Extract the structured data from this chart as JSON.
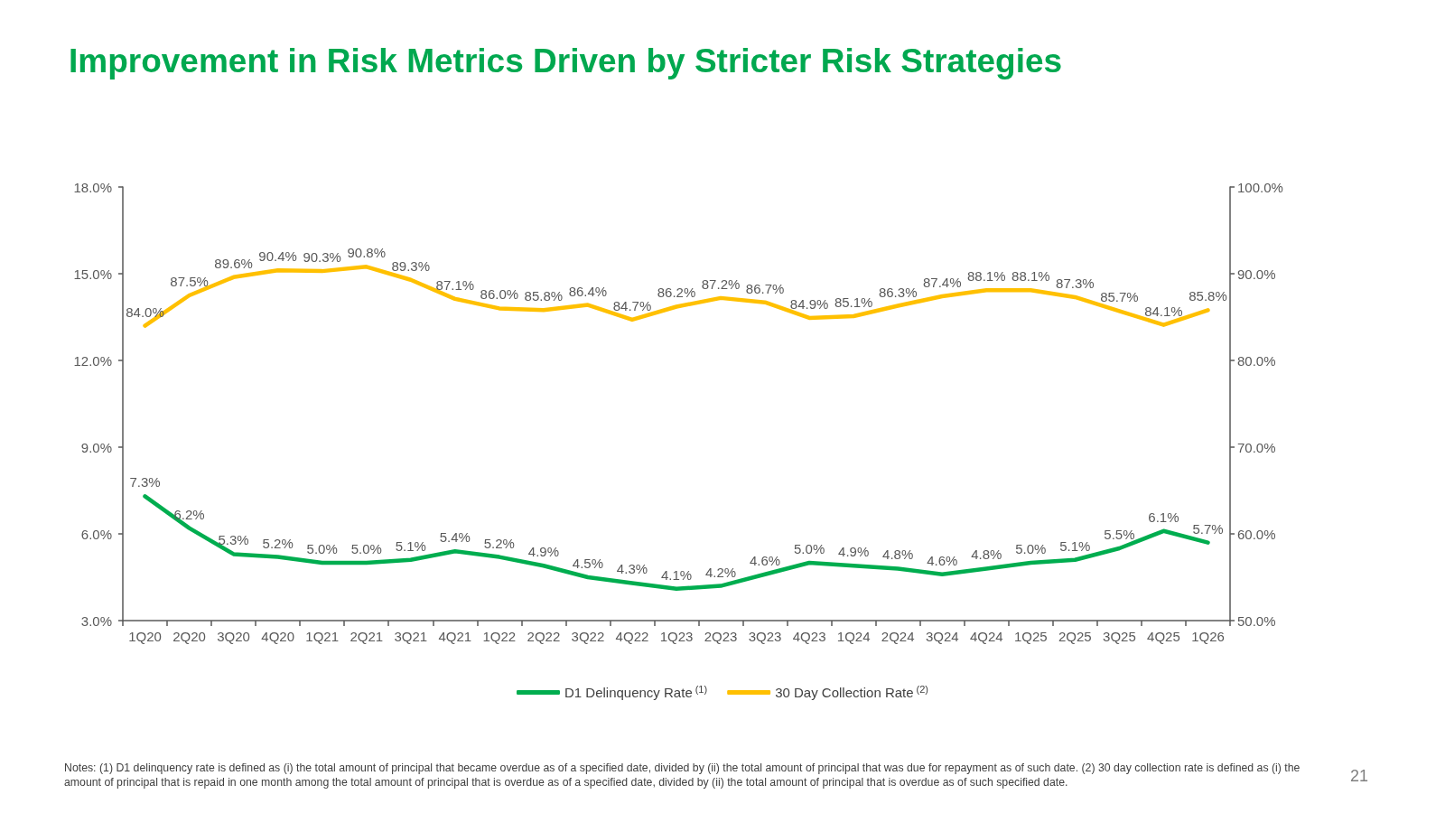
{
  "chart_data": {
    "type": "line",
    "title": "Improvement in Risk Metrics Driven by Stricter Risk Strategies",
    "categories": [
      "1Q20",
      "2Q20",
      "3Q20",
      "4Q20",
      "1Q21",
      "2Q21",
      "3Q21",
      "4Q21",
      "1Q22",
      "2Q22",
      "3Q22",
      "4Q22",
      "1Q23",
      "2Q23",
      "3Q23",
      "4Q23",
      "1Q24",
      "2Q24",
      "3Q24",
      "4Q24",
      "1Q25",
      "2Q25",
      "3Q25",
      "4Q25",
      "1Q26"
    ],
    "series": [
      {
        "name": "D1 Delinquency Rate$^{(1)}$",
        "color": "#00ad4f",
        "values": [
          7.3,
          6.2,
          5.3,
          5.2,
          5.0,
          5.0,
          5.1,
          5.4,
          5.2,
          4.9,
          4.5,
          4.3,
          4.1,
          4.2,
          4.6,
          5.0,
          4.9,
          4.8,
          4.6,
          4.8,
          5.0,
          5.1,
          5.5,
          6.1,
          5.7
        ],
        "value_labels": [
          "7.3%",
          "6.2%",
          "5.3%",
          "5.2%",
          "5.0%",
          "5.0%",
          "5.1%",
          "5.4%",
          "5.2%",
          "4.9%",
          "4.5%",
          "4.3%",
          "4.1%",
          "4.2%",
          "4.6%",
          "5.0%",
          "4.9%",
          "4.8%",
          "4.6%",
          "4.8%",
          "5.0%",
          "5.1%",
          "5.5%",
          "6.1%",
          "5.7%"
        ]
      },
      {
        "name": "30 Day Collection Rate$^{(2)}$",
        "color": "#ffc000",
        "axis": "y2",
        "values": [
          84.0,
          87.5,
          89.6,
          90.4,
          90.3,
          90.8,
          89.3,
          87.1,
          86.0,
          85.8,
          86.4,
          84.7,
          86.2,
          87.2,
          86.7,
          84.9,
          85.1,
          86.3,
          87.4,
          88.1,
          88.1,
          87.3,
          85.7,
          84.1,
          85.8
        ],
        "value_labels": [
          "84.0%",
          "87.5%",
          "89.6%",
          "90.4%",
          "90.3%",
          "90.8%",
          "89.3%",
          "87.1%",
          "86.0%",
          "85.8%",
          "86.4%",
          "84.7%",
          "86.2%",
          "87.2%",
          "86.7%",
          "84.9%",
          "85.1%",
          "86.3%",
          "87.4%",
          "88.1%",
          "88.1%",
          "87.3%",
          "85.7%",
          "84.1%",
          "85.8%"
        ]
      }
    ],
    "ylim": [
      3,
      18
    ],
    "yticks": [
      {
        "value": 3,
        "label": "3.0%"
      },
      {
        "value": 6,
        "label": "6.0%"
      },
      {
        "value": 9,
        "label": "9.0%"
      },
      {
        "value": 12,
        "label": "12.0%"
      },
      {
        "value": 15,
        "label": "15.0%"
      },
      {
        "value": 18,
        "label": "18.0%"
      }
    ],
    "y2lim": [
      50,
      100
    ],
    "y2ticks": [
      {
        "value": 50,
        "label": "50.0%"
      },
      {
        "value": 60,
        "label": "60.0%"
      },
      {
        "value": 70,
        "label": "70.0%"
      },
      {
        "value": 80,
        "label": "80.0%"
      },
      {
        "value": 90,
        "label": "90.0%"
      },
      {
        "value": 100,
        "label": "100.0%"
      }
    ],
    "grid": false,
    "legend": "bottom",
    "marker": "none",
    "line_style": "solid",
    "annotations": [
      "Notes: (1) D1 delinquency rate is defined as (i) the total amount of principal that became overdue as of a specified date, divided by (ii) the total amount of principal that was due for repayment as of such date. (2) 30 day collection rate is defined as (i) the amount of principal that is repaid in one month among the total amount of principal that is overdue as of a specified date, divided by (ii) the total amount of principal that is overdue as of such specified date.",
      "21"
    ]
  }
}
